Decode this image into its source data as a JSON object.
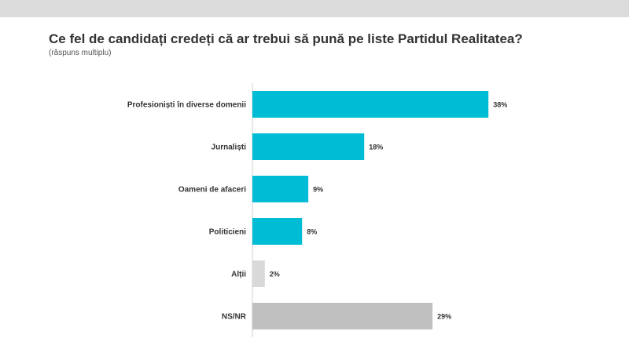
{
  "title": "Ce fel de candidați credeți că ar trebui să pună pe liste Partidul Realitatea?",
  "subtitle": "(răspuns multiplu)",
  "colors": {
    "accent": "#00bcd4",
    "neutral_light": "#d9d9d9",
    "neutral_dark": "#c0c0c0"
  },
  "chart_data": {
    "type": "bar",
    "orientation": "horizontal",
    "title": "Ce fel de candidați credeți că ar trebui să pună pe liste Partidul Realitatea?",
    "subtitle": "(răspuns multiplu)",
    "categories": [
      "Profesioniști în diverse domenii",
      "Jurnaliști",
      "Oameni de afaceri",
      "Politicieni",
      "Alții",
      "NS/NR"
    ],
    "values": [
      38,
      18,
      9,
      8,
      2,
      29
    ],
    "value_labels": [
      "38%",
      "18%",
      "9%",
      "8%",
      "2%",
      "29%"
    ],
    "bar_colors": [
      "#00bcd4",
      "#00bcd4",
      "#00bcd4",
      "#00bcd4",
      "#d9d9d9",
      "#c0c0c0"
    ],
    "xlim": [
      0,
      40
    ],
    "grid": false,
    "legend": "none"
  }
}
